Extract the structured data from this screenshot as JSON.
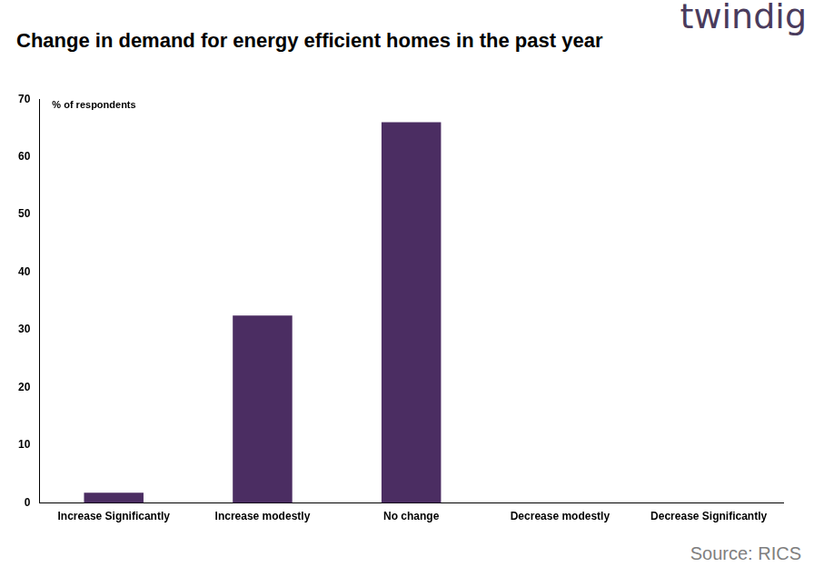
{
  "chart_data": {
    "type": "bar",
    "title": "Change in demand for energy efficient homes in the past year",
    "ylabel": "% of respondents",
    "source": "Source: RICS",
    "logo": "twindig",
    "categories": [
      "Increase Significantly",
      "Increase modestly",
      "No change",
      "Decrease modestly",
      "Decrease Significantly"
    ],
    "values": [
      1.8,
      32.5,
      66,
      0,
      0
    ],
    "color": "#4b2d62",
    "ylim": [
      0,
      70
    ],
    "yticks": [
      0,
      10,
      20,
      30,
      40,
      50,
      60,
      70
    ],
    "grid": false,
    "data_labels": false
  }
}
